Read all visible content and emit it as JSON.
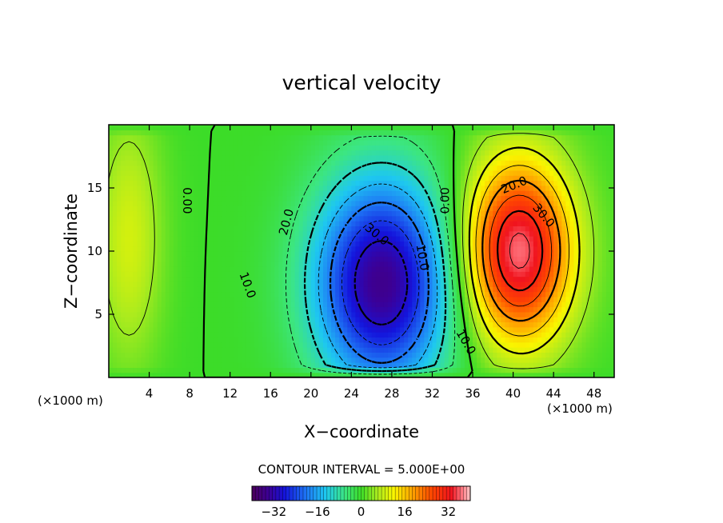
{
  "chart_data": {
    "type": "heatmap",
    "title": "vertical velocity",
    "xlabel": "X−coordinate",
    "ylabel": "Z−coordinate",
    "x_unit_left": "(×1000 m)",
    "x_unit_right": "(×1000 m)",
    "xlim": [
      0,
      50
    ],
    "ylim": [
      0,
      20
    ],
    "x_ticks": [
      4,
      8,
      12,
      16,
      20,
      24,
      28,
      32,
      36,
      40,
      44,
      48
    ],
    "y_ticks": [
      5,
      10,
      15
    ],
    "contour_interval_text": "CONTOUR INTERVAL = 5.000E+00",
    "contour_labels": [
      {
        "text": "0.00",
        "x": 7.7,
        "y": 14.0,
        "rotate": 90
      },
      {
        "text": "0.00",
        "x": 33.3,
        "y": 14.0,
        "rotate": -90
      },
      {
        "text": "10.0",
        "x": 13.7,
        "y": 7.3,
        "rotate": 70
      },
      {
        "text": "20.0",
        "x": 17.6,
        "y": 12.3,
        "rotate": -75
      },
      {
        "text": "30.0",
        "x": 26.5,
        "y": 11.3,
        "rotate": 40
      },
      {
        "text": "10.0",
        "x": 31.0,
        "y": 9.5,
        "rotate": 80
      },
      {
        "text": "20.0",
        "x": 40.1,
        "y": 15.2,
        "rotate": -22
      },
      {
        "text": "30.0",
        "x": 43.0,
        "y": 12.8,
        "rotate": 50
      },
      {
        "text": "10.0",
        "x": 35.3,
        "y": 2.8,
        "rotate": 60
      }
    ],
    "field_extremes": [
      {
        "x": 27.0,
        "y": 7.5,
        "value": -35
      },
      {
        "x": 40.5,
        "y": 10.0,
        "value": 37
      },
      {
        "x": 2.0,
        "y": 11.0,
        "value": 9
      }
    ],
    "colorbar": {
      "min": -40,
      "max": 40,
      "ticks": [
        {
          "value": -32,
          "label": "−32"
        },
        {
          "value": -16,
          "label": "−16"
        },
        {
          "value": 0,
          "label": "0"
        },
        {
          "value": 16,
          "label": "16"
        },
        {
          "value": 32,
          "label": "32"
        }
      ]
    }
  }
}
